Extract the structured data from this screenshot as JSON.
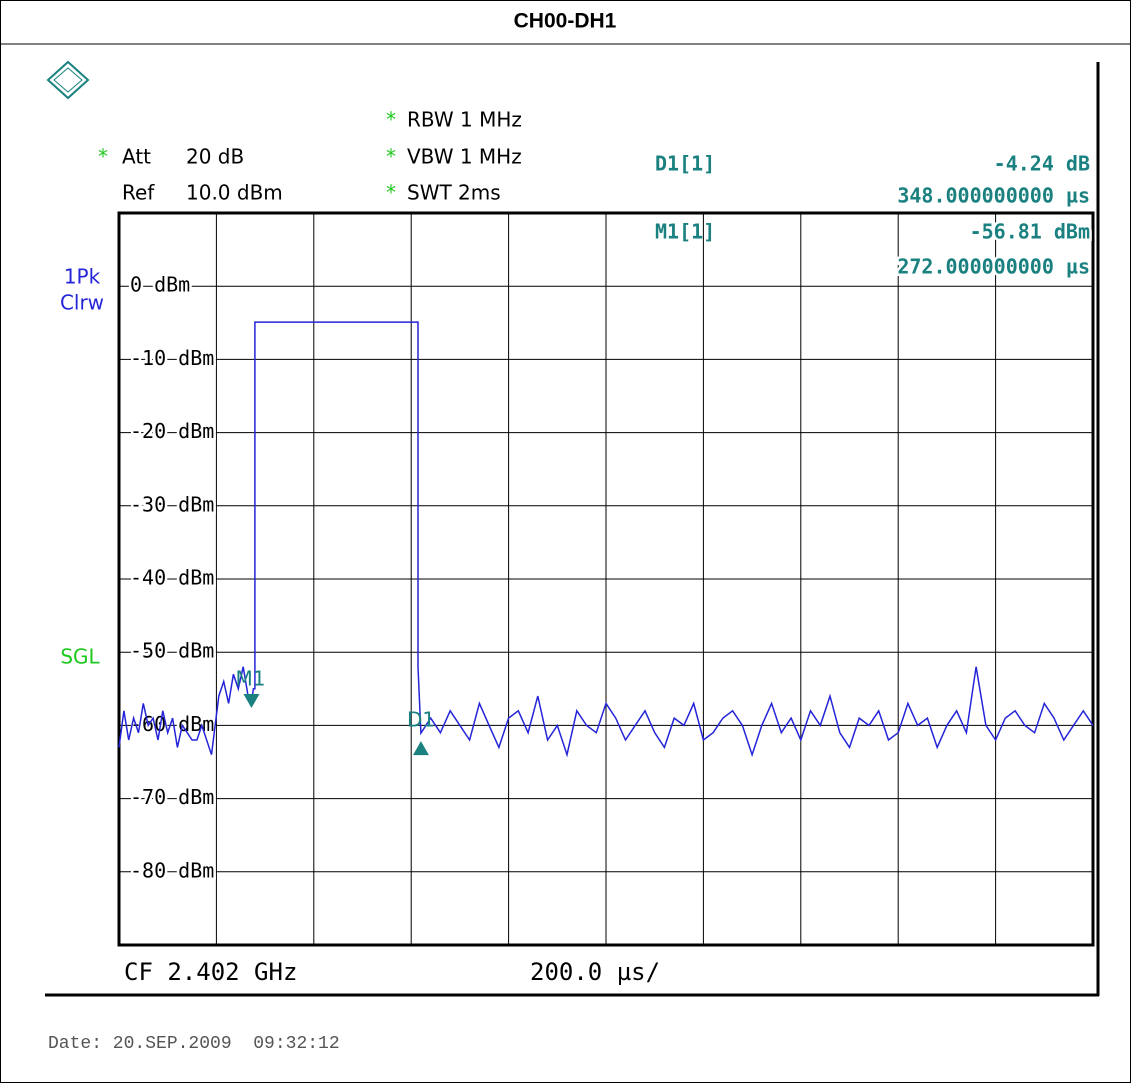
{
  "title": "CH00-DH1",
  "settings": {
    "att": {
      "star": "*",
      "label": "Att",
      "value": "20 dB"
    },
    "ref": {
      "label": "Ref",
      "value": "10.0 dBm"
    },
    "rbw": {
      "star": "*",
      "text": "RBW 1 MHz"
    },
    "vbw": {
      "star": "*",
      "text": "VBW 1 MHz"
    },
    "swt": {
      "star": "*",
      "text": "SWT 2ms"
    }
  },
  "trace_labels": [
    "1Pk",
    "Clrw"
  ],
  "mode": "SGL",
  "chart_data": {
    "type": "line",
    "color": "#2424d8",
    "xlim": [
      0,
      2000
    ],
    "ylim": [
      -90,
      10
    ],
    "grid": true,
    "yticks": [
      {
        "value": 0,
        "label": "0 dBm"
      },
      {
        "value": -10,
        "label": "-10 dBm"
      },
      {
        "value": -20,
        "label": "-20 dBm"
      },
      {
        "value": -30,
        "label": "-30 dBm"
      },
      {
        "value": -40,
        "label": "-40 dBm"
      },
      {
        "value": -50,
        "label": "-50 dBm"
      },
      {
        "value": -60,
        "label": "-60 dBm"
      },
      {
        "value": -70,
        "label": "-70 dBm"
      },
      {
        "value": -80,
        "label": "-80 dBm"
      }
    ],
    "x": [
      0,
      10,
      20,
      30,
      40,
      50,
      60,
      70,
      80,
      90,
      100,
      110,
      120,
      130,
      140,
      150,
      160,
      170,
      190,
      205,
      215,
      225,
      235,
      245,
      255,
      265,
      272,
      276,
      279,
      279,
      614,
      614,
      620,
      640,
      660,
      680,
      700,
      720,
      740,
      760,
      780,
      800,
      820,
      840,
      860,
      880,
      900,
      920,
      940,
      960,
      980,
      1000,
      1020,
      1040,
      1060,
      1080,
      1100,
      1120,
      1140,
      1160,
      1180,
      1200,
      1220,
      1240,
      1260,
      1280,
      1300,
      1320,
      1340,
      1360,
      1380,
      1400,
      1420,
      1440,
      1460,
      1480,
      1500,
      1520,
      1540,
      1560,
      1580,
      1600,
      1620,
      1640,
      1660,
      1680,
      1700,
      1720,
      1740,
      1760,
      1780,
      1800,
      1820,
      1840,
      1860,
      1880,
      1900,
      1920,
      1940,
      1960,
      1980,
      2000
    ],
    "values": [
      -63,
      -58,
      -62,
      -59,
      -61,
      -57,
      -60,
      -59,
      -62,
      -58,
      -61,
      -59,
      -63,
      -60,
      -61,
      -62,
      -62,
      -60,
      -64,
      -56,
      -54,
      -57,
      -53,
      -55,
      -52,
      -56,
      -56.81,
      -55,
      -55,
      -4.9,
      -4.9,
      -52,
      -61.05,
      -59,
      -61,
      -58,
      -60,
      -62,
      -57,
      -60,
      -63,
      -59,
      -58,
      -61,
      -56,
      -62,
      -60,
      -64,
      -58,
      -60,
      -61,
      -57,
      -59,
      -62,
      -60,
      -58,
      -61,
      -63,
      -59,
      -60,
      -57,
      -62,
      -61,
      -59,
      -58,
      -60,
      -64,
      -60,
      -57,
      -61,
      -59,
      -62,
      -58,
      -60,
      -56,
      -61,
      -63,
      -59,
      -60,
      -58,
      -62,
      -61,
      -57,
      -60,
      -59,
      -63,
      -60,
      -58,
      -61,
      -52,
      -60,
      -62,
      -59,
      -58,
      -60,
      -61,
      -57,
      -59,
      -62,
      -60,
      -58,
      -60
    ],
    "markers": [
      {
        "name": "M1",
        "readout": "M1[1]",
        "level": {
          "value": -56.81,
          "label": "-56.81 dBm"
        },
        "position": {
          "value": 272,
          "label": "272.000000000 µs"
        }
      },
      {
        "name": "D1",
        "readout": "D1[1]",
        "level": {
          "value": -4.24,
          "label": "-4.24 dB"
        },
        "position": {
          "value": 348,
          "label": "348.000000000 µs"
        }
      }
    ]
  },
  "footer": {
    "center": "CF 2.402 GHz",
    "span": "200.0 µs/"
  },
  "date": "Date: 20.SEP.2009  09:32:12"
}
